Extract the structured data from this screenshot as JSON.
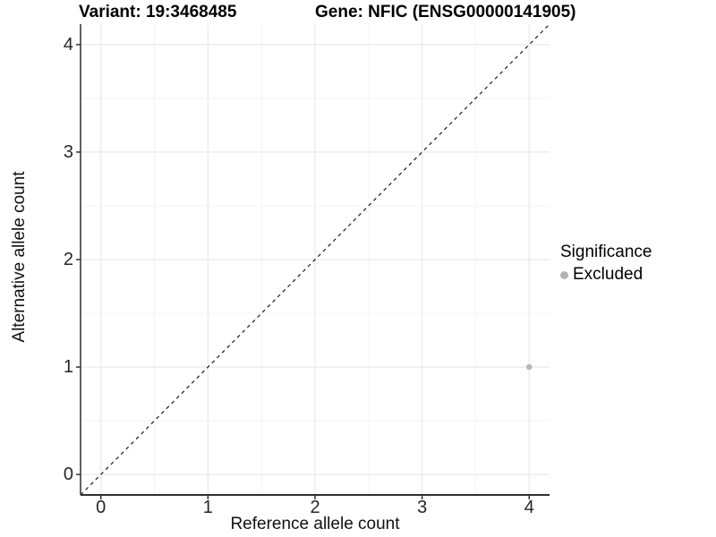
{
  "chart_data": {
    "type": "scatter",
    "title_left": "Variant: 19:3468485",
    "title_right": "Gene: NFIC (ENSG00000141905)",
    "xlabel": "Reference allele count",
    "ylabel": "Alternative allele count",
    "xlim": [
      -0.19,
      4.19
    ],
    "ylim": [
      -0.19,
      4.19
    ],
    "x_ticks": [
      0,
      1,
      2,
      3,
      4
    ],
    "y_ticks": [
      0,
      1,
      2,
      3,
      4
    ],
    "x_minor_ticks": [
      0.5,
      1.5,
      2.5,
      3.5
    ],
    "y_minor_ticks": [
      0.5,
      1.5,
      2.5,
      3.5
    ],
    "grid": "major+minor",
    "identity_line": {
      "type": "abline",
      "intercept": 0,
      "slope": 1,
      "style": "dashed",
      "color": "#1a1a1a"
    },
    "series": [
      {
        "name": "Excluded",
        "color": "#b9b9b9",
        "points": [
          {
            "x": 4,
            "y": 1
          }
        ]
      }
    ],
    "legend": {
      "title": "Significance",
      "position": "right",
      "entries": [
        {
          "label": "Excluded",
          "color": "#b3b3b3"
        }
      ]
    },
    "style": {
      "background": "#ffffff",
      "major_grid_color": "#e9e9e9",
      "minor_grid_color": "#f4f4f4",
      "axis_line_color": "#2e2e2e",
      "tick_mark_color": "#333333",
      "point_radius": 3.3,
      "legend_dot_radius": 4.5
    }
  }
}
